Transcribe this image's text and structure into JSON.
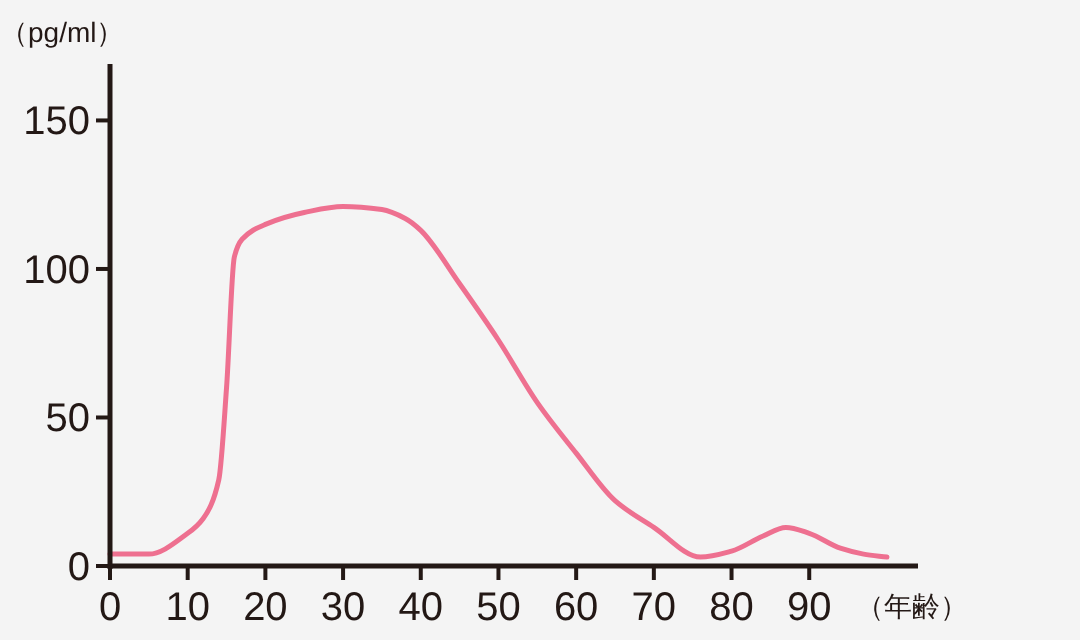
{
  "chart_data": {
    "type": "line",
    "ylabel": "（pg/ml）",
    "xlabel": "（年齢）",
    "xlim": [
      0,
      104
    ],
    "ylim": [
      0,
      169
    ],
    "xticks": [
      0,
      10,
      20,
      30,
      40,
      50,
      60,
      70,
      80,
      90
    ],
    "yticks": [
      0,
      50,
      100,
      150
    ],
    "grid": false,
    "series": [
      {
        "color": "#ee7090",
        "x": [
          0,
          5,
          10,
          12,
          14,
          15,
          16,
          17,
          20,
          25,
          30,
          35,
          38,
          40,
          45,
          50,
          55,
          60,
          65,
          70,
          76,
          80,
          84,
          87,
          90,
          94,
          97,
          100
        ],
        "values": [
          4,
          4,
          11,
          16,
          29,
          60,
          104,
          110,
          115,
          119,
          121,
          120,
          117,
          113,
          95,
          76,
          55,
          38,
          22,
          13,
          3,
          5,
          10,
          13,
          11,
          6,
          4,
          3
        ]
      }
    ]
  }
}
